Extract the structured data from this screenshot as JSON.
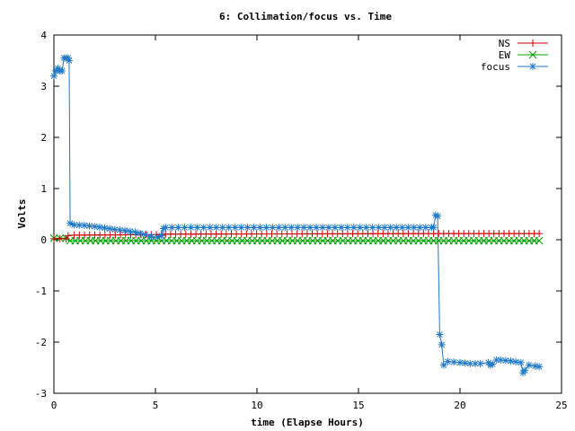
{
  "chart_data": {
    "type": "line",
    "title": "6: Collimation/focus vs. Time",
    "xlabel": "time (Elapse Hours)",
    "ylabel": "Volts",
    "xlim": [
      0,
      25
    ],
    "ylim": [
      -3,
      4
    ],
    "xticks": [
      0,
      5,
      10,
      15,
      20,
      25
    ],
    "yticks": [
      -3,
      -2,
      -1,
      0,
      1,
      2,
      3,
      4
    ],
    "xtick_labels": [
      "0",
      "5",
      "10",
      "15",
      "20",
      "25"
    ],
    "ytick_labels": [
      "-3",
      "-2",
      "-1",
      "0",
      "1",
      "2",
      "3",
      "4"
    ],
    "grid": false,
    "legend_position": "top-right",
    "series": [
      {
        "name": "NS",
        "color": "#cc0000",
        "marker": "plus",
        "x": [
          0.0,
          0.6,
          0.7,
          1.0,
          5.3,
          5.5,
          18.7,
          23.9
        ],
        "y": [
          0.02,
          0.02,
          0.08,
          0.09,
          0.1,
          0.11,
          0.12,
          0.12
        ]
      },
      {
        "name": "EW",
        "color": "#00a000",
        "marker": "cross",
        "x": [
          0.0,
          0.6,
          0.8,
          5.3,
          18.7,
          23.9
        ],
        "y": [
          0.03,
          0.03,
          -0.02,
          -0.02,
          -0.02,
          -0.02
        ]
      },
      {
        "name": "focus",
        "color": "#1f78c8",
        "marker": "star",
        "x": [
          0.0,
          0.1,
          0.2,
          0.3,
          0.4,
          0.5,
          0.6,
          0.7,
          0.75,
          0.8,
          1.0,
          1.5,
          2.0,
          2.5,
          3.0,
          3.5,
          4.0,
          4.5,
          4.8,
          5.1,
          5.3,
          5.4,
          5.5,
          8.0,
          12.0,
          16.0,
          18.6,
          18.7,
          18.8,
          18.9,
          19.0,
          19.1,
          19.2,
          19.4,
          20.0,
          20.5,
          21.0,
          21.4,
          21.5,
          21.6,
          21.8,
          22.0,
          22.5,
          23.0,
          23.1,
          23.2,
          23.4,
          23.7,
          23.9
        ],
        "y": [
          3.2,
          3.3,
          3.35,
          3.3,
          3.3,
          3.55,
          3.55,
          3.55,
          3.5,
          0.32,
          0.29,
          0.28,
          0.26,
          0.23,
          0.2,
          0.18,
          0.15,
          0.1,
          0.06,
          0.05,
          0.08,
          0.22,
          0.24,
          0.24,
          0.24,
          0.24,
          0.24,
          0.24,
          0.48,
          0.46,
          -1.85,
          -2.05,
          -2.45,
          -2.38,
          -2.4,
          -2.42,
          -2.42,
          -2.4,
          -2.45,
          -2.43,
          -2.35,
          -2.35,
          -2.37,
          -2.4,
          -2.6,
          -2.55,
          -2.45,
          -2.47,
          -2.48
        ]
      }
    ]
  }
}
